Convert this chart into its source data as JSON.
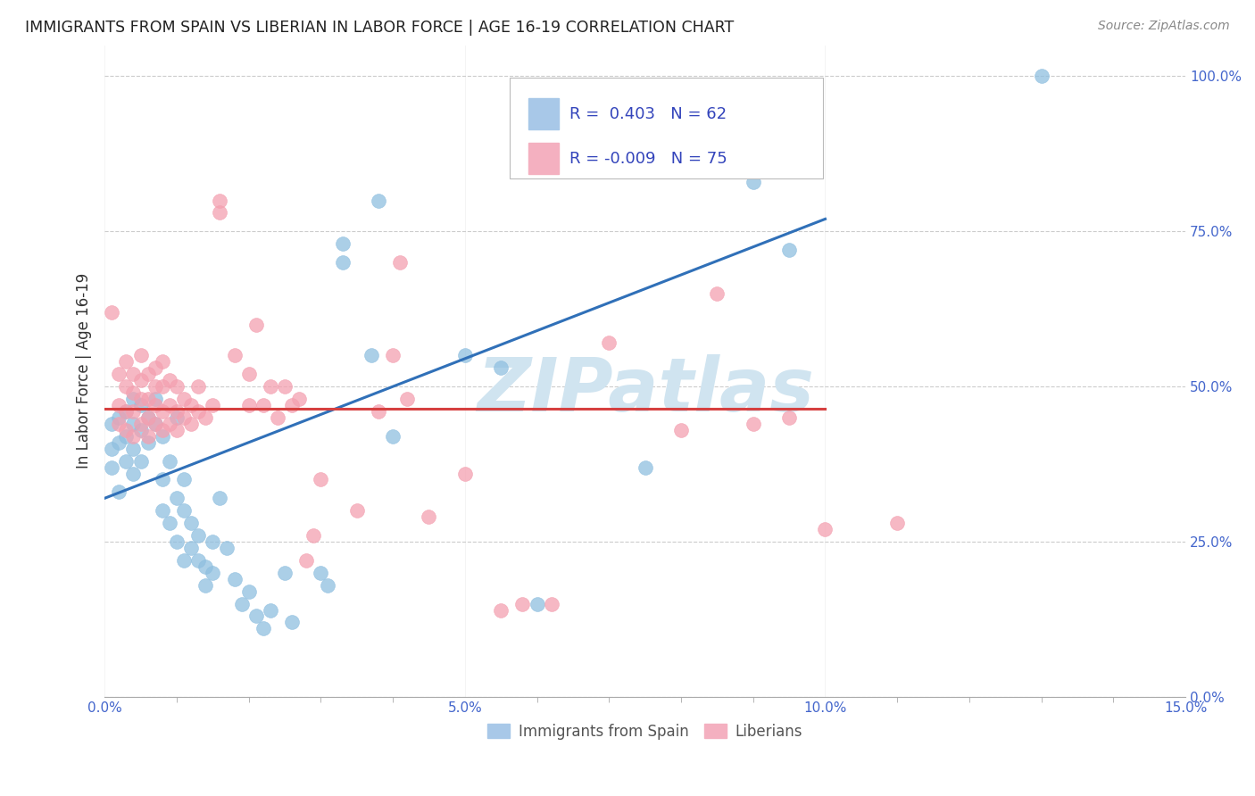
{
  "title": "IMMIGRANTS FROM SPAIN VS LIBERIAN IN LABOR FORCE | AGE 16-19 CORRELATION CHART",
  "source": "Source: ZipAtlas.com",
  "xlabel_ticks": [
    "0.0%",
    "",
    "",
    "",
    "",
    "5.0%",
    "",
    "",
    "",
    "",
    "10.0%",
    "",
    "",
    "",
    "",
    "15.0%"
  ],
  "xlabel_tick_vals": [
    0.0,
    0.01,
    0.02,
    0.03,
    0.04,
    0.05,
    0.06,
    0.07,
    0.08,
    0.09,
    0.1,
    0.11,
    0.12,
    0.13,
    0.14,
    0.15
  ],
  "xlabel_major_ticks": [
    0.0,
    0.05,
    0.1,
    0.15
  ],
  "xlabel_major_labels": [
    "0.0%",
    "5.0%",
    "10.0%",
    "15.0%"
  ],
  "ylabel_ticks": [
    "0.0%",
    "25.0%",
    "50.0%",
    "75.0%",
    "100.0%"
  ],
  "ylabel_tick_vals": [
    0.0,
    0.25,
    0.5,
    0.75,
    1.0
  ],
  "ylabel_label": "In Labor Force | Age 16-19",
  "legend_entry1": {
    "label": "Immigrants from Spain",
    "R": "0.403",
    "N": "62",
    "color": "#a8c4e0"
  },
  "legend_entry2": {
    "label": "Liberians",
    "R": "-0.009",
    "N": "75",
    "color": "#f4a7b9"
  },
  "watermark": "ZIPatlas",
  "blue_line_x": [
    0.0,
    0.1
  ],
  "blue_line_y": [
    0.32,
    0.77
  ],
  "pink_line_x": [
    0.0,
    0.1
  ],
  "pink_line_y": [
    0.465,
    0.465
  ],
  "blue_scatter": [
    [
      0.001,
      0.37
    ],
    [
      0.001,
      0.4
    ],
    [
      0.001,
      0.44
    ],
    [
      0.002,
      0.33
    ],
    [
      0.002,
      0.41
    ],
    [
      0.002,
      0.45
    ],
    [
      0.003,
      0.38
    ],
    [
      0.003,
      0.42
    ],
    [
      0.003,
      0.46
    ],
    [
      0.004,
      0.36
    ],
    [
      0.004,
      0.4
    ],
    [
      0.004,
      0.44
    ],
    [
      0.004,
      0.48
    ],
    [
      0.005,
      0.38
    ],
    [
      0.005,
      0.43
    ],
    [
      0.005,
      0.47
    ],
    [
      0.006,
      0.41
    ],
    [
      0.006,
      0.45
    ],
    [
      0.007,
      0.44
    ],
    [
      0.007,
      0.48
    ],
    [
      0.008,
      0.3
    ],
    [
      0.008,
      0.35
    ],
    [
      0.008,
      0.42
    ],
    [
      0.009,
      0.28
    ],
    [
      0.009,
      0.38
    ],
    [
      0.01,
      0.25
    ],
    [
      0.01,
      0.32
    ],
    [
      0.01,
      0.45
    ],
    [
      0.011,
      0.22
    ],
    [
      0.011,
      0.3
    ],
    [
      0.011,
      0.35
    ],
    [
      0.012,
      0.24
    ],
    [
      0.012,
      0.28
    ],
    [
      0.013,
      0.22
    ],
    [
      0.013,
      0.26
    ],
    [
      0.014,
      0.18
    ],
    [
      0.014,
      0.21
    ],
    [
      0.015,
      0.2
    ],
    [
      0.015,
      0.25
    ],
    [
      0.016,
      0.32
    ],
    [
      0.017,
      0.24
    ],
    [
      0.018,
      0.19
    ],
    [
      0.019,
      0.15
    ],
    [
      0.02,
      0.17
    ],
    [
      0.021,
      0.13
    ],
    [
      0.022,
      0.11
    ],
    [
      0.023,
      0.14
    ],
    [
      0.025,
      0.2
    ],
    [
      0.026,
      0.12
    ],
    [
      0.03,
      0.2
    ],
    [
      0.031,
      0.18
    ],
    [
      0.033,
      0.7
    ],
    [
      0.033,
      0.73
    ],
    [
      0.037,
      0.55
    ],
    [
      0.038,
      0.8
    ],
    [
      0.04,
      0.42
    ],
    [
      0.05,
      0.55
    ],
    [
      0.055,
      0.53
    ],
    [
      0.06,
      0.15
    ],
    [
      0.075,
      0.37
    ],
    [
      0.09,
      0.83
    ],
    [
      0.095,
      0.72
    ],
    [
      0.13,
      1.0
    ]
  ],
  "pink_scatter": [
    [
      0.001,
      0.62
    ],
    [
      0.002,
      0.44
    ],
    [
      0.002,
      0.47
    ],
    [
      0.002,
      0.52
    ],
    [
      0.003,
      0.43
    ],
    [
      0.003,
      0.46
    ],
    [
      0.003,
      0.5
    ],
    [
      0.003,
      0.54
    ],
    [
      0.004,
      0.42
    ],
    [
      0.004,
      0.46
    ],
    [
      0.004,
      0.49
    ],
    [
      0.004,
      0.52
    ],
    [
      0.005,
      0.44
    ],
    [
      0.005,
      0.48
    ],
    [
      0.005,
      0.51
    ],
    [
      0.005,
      0.55
    ],
    [
      0.006,
      0.42
    ],
    [
      0.006,
      0.45
    ],
    [
      0.006,
      0.48
    ],
    [
      0.006,
      0.52
    ],
    [
      0.007,
      0.44
    ],
    [
      0.007,
      0.47
    ],
    [
      0.007,
      0.5
    ],
    [
      0.007,
      0.53
    ],
    [
      0.008,
      0.43
    ],
    [
      0.008,
      0.46
    ],
    [
      0.008,
      0.5
    ],
    [
      0.008,
      0.54
    ],
    [
      0.009,
      0.44
    ],
    [
      0.009,
      0.47
    ],
    [
      0.009,
      0.51
    ],
    [
      0.01,
      0.43
    ],
    [
      0.01,
      0.46
    ],
    [
      0.01,
      0.5
    ],
    [
      0.011,
      0.45
    ],
    [
      0.011,
      0.48
    ],
    [
      0.012,
      0.44
    ],
    [
      0.012,
      0.47
    ],
    [
      0.013,
      0.46
    ],
    [
      0.013,
      0.5
    ],
    [
      0.014,
      0.45
    ],
    [
      0.015,
      0.47
    ],
    [
      0.016,
      0.78
    ],
    [
      0.016,
      0.8
    ],
    [
      0.018,
      0.55
    ],
    [
      0.02,
      0.47
    ],
    [
      0.02,
      0.52
    ],
    [
      0.021,
      0.6
    ],
    [
      0.022,
      0.47
    ],
    [
      0.023,
      0.5
    ],
    [
      0.024,
      0.45
    ],
    [
      0.025,
      0.5
    ],
    [
      0.026,
      0.47
    ],
    [
      0.027,
      0.48
    ],
    [
      0.028,
      0.22
    ],
    [
      0.029,
      0.26
    ],
    [
      0.03,
      0.35
    ],
    [
      0.035,
      0.3
    ],
    [
      0.038,
      0.46
    ],
    [
      0.04,
      0.55
    ],
    [
      0.041,
      0.7
    ],
    [
      0.042,
      0.48
    ],
    [
      0.045,
      0.29
    ],
    [
      0.05,
      0.36
    ],
    [
      0.055,
      0.14
    ],
    [
      0.058,
      0.15
    ],
    [
      0.062,
      0.15
    ],
    [
      0.07,
      0.57
    ],
    [
      0.08,
      0.43
    ],
    [
      0.085,
      0.65
    ],
    [
      0.09,
      0.44
    ],
    [
      0.095,
      0.45
    ],
    [
      0.1,
      0.27
    ],
    [
      0.11,
      0.28
    ]
  ],
  "blue_dot_color": "#8fbfe0",
  "pink_dot_color": "#f4a0b0",
  "blue_line_color": "#3070b8",
  "pink_line_color": "#d64040",
  "watermark_color": "#d0e4f0",
  "background_color": "#ffffff",
  "grid_color": "#cccccc",
  "xlim": [
    0.0,
    0.15
  ],
  "ylim": [
    0.0,
    1.05
  ],
  "tick_color": "#4466cc",
  "legend_box_color": "#aabbdd",
  "legend_text_color": "#3344bb"
}
